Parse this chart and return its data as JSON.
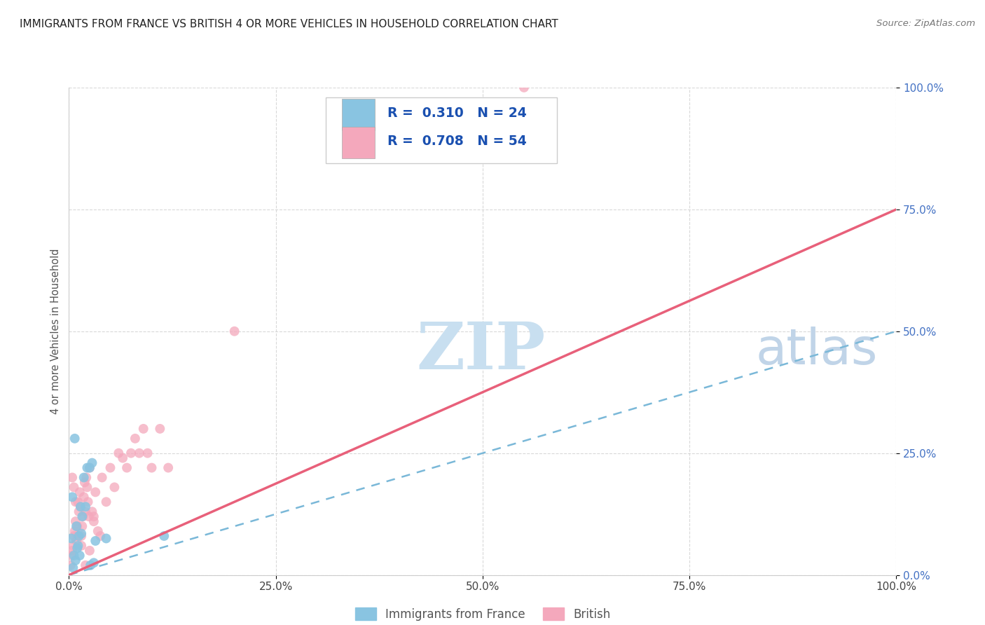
{
  "title": "IMMIGRANTS FROM FRANCE VS BRITISH 4 OR MORE VEHICLES IN HOUSEHOLD CORRELATION CHART",
  "source": "Source: ZipAtlas.com",
  "ylabel": "4 or more Vehicles in Household",
  "xlim": [
    0,
    100
  ],
  "ylim": [
    0,
    100
  ],
  "xticks": [
    0,
    25,
    50,
    75,
    100
  ],
  "yticks": [
    0,
    25,
    50,
    75,
    100
  ],
  "xtick_labels": [
    "0.0%",
    "25.0%",
    "50.0%",
    "75.0%",
    "100.0%"
  ],
  "ytick_labels": [
    "0.0%",
    "25.0%",
    "50.0%",
    "75.0%",
    "100.0%"
  ],
  "legend_label1": "Immigrants from France",
  "legend_label2": "British",
  "R1": 0.31,
  "N1": 24,
  "R2": 0.708,
  "N2": 54,
  "color1": "#89c4e1",
  "color2": "#f4a8bc",
  "line1_color": "#7ab8d8",
  "line2_color": "#e8607a",
  "watermark_zip": "ZIP",
  "watermark_atlas": "atlas",
  "watermark_color_zip": "#c8dff0",
  "watermark_color_atlas": "#c0d4e8",
  "france_x": [
    0.5,
    0.8,
    1.0,
    1.2,
    1.4,
    1.6,
    1.8,
    2.0,
    2.2,
    2.5,
    2.8,
    3.0,
    3.2,
    0.3,
    0.4,
    0.6,
    0.7,
    0.9,
    1.1,
    1.3,
    1.5,
    4.5,
    2.6,
    11.5
  ],
  "france_y": [
    1.5,
    3.0,
    5.5,
    8.0,
    14.0,
    12.0,
    20.0,
    14.0,
    22.0,
    22.0,
    23.0,
    2.5,
    7.0,
    7.5,
    16.0,
    4.0,
    28.0,
    10.0,
    6.0,
    4.0,
    8.5,
    7.5,
    2.0,
    8.0
  ],
  "british_x": [
    0.2,
    0.3,
    0.4,
    0.5,
    0.6,
    0.7,
    0.8,
    0.9,
    1.0,
    1.1,
    1.2,
    1.3,
    1.4,
    1.5,
    1.6,
    1.7,
    1.8,
    1.9,
    2.0,
    2.1,
    2.2,
    2.3,
    2.4,
    2.5,
    2.8,
    3.0,
    3.2,
    3.5,
    3.8,
    4.0,
    4.5,
    5.0,
    5.5,
    6.0,
    6.5,
    7.0,
    7.5,
    8.0,
    8.5,
    9.0,
    9.5,
    10.0,
    11.0,
    12.0,
    0.4,
    0.6,
    0.8,
    1.0,
    1.5,
    2.0,
    2.5,
    3.0,
    20.0,
    55.0
  ],
  "british_y": [
    2.0,
    4.0,
    5.0,
    6.0,
    8.0,
    9.0,
    11.0,
    7.0,
    10.0,
    15.0,
    13.0,
    17.0,
    14.0,
    8.0,
    10.0,
    12.0,
    16.0,
    19.0,
    13.0,
    20.0,
    18.0,
    15.0,
    12.0,
    22.0,
    13.0,
    11.0,
    17.0,
    9.0,
    8.0,
    20.0,
    15.0,
    22.0,
    18.0,
    25.0,
    24.0,
    22.0,
    25.0,
    28.0,
    25.0,
    30.0,
    25.0,
    22.0,
    30.0,
    22.0,
    20.0,
    18.0,
    15.0,
    8.0,
    6.0,
    2.0,
    5.0,
    12.0,
    50.0,
    100.0
  ],
  "line1_slope": 0.5,
  "line1_intercept": 0.0,
  "line2_slope": 0.75,
  "line2_intercept": 0.0
}
